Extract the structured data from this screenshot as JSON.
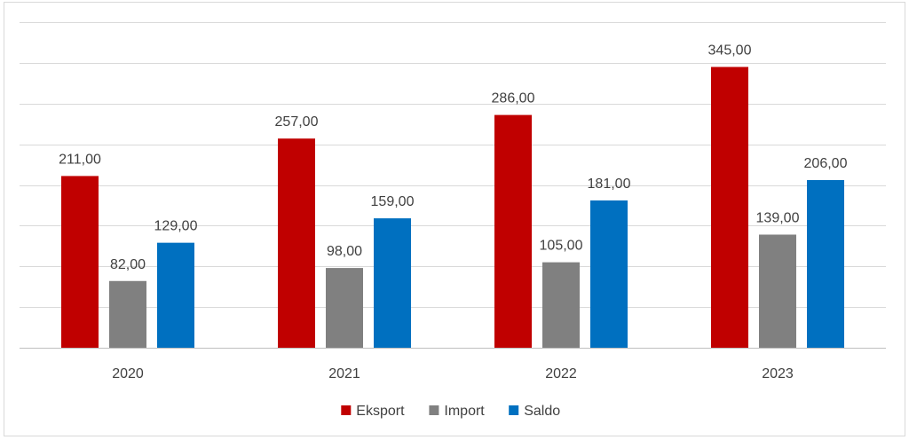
{
  "chart_data": {
    "type": "bar",
    "categories": [
      "2020",
      "2021",
      "2022",
      "2023"
    ],
    "series": [
      {
        "name": "Eksport",
        "color": "#c00000",
        "values": [
          211.0,
          257.0,
          286.0,
          345.0
        ],
        "labels": [
          "211,00",
          "257,00",
          "286,00",
          "345,00"
        ]
      },
      {
        "name": "Import",
        "color": "#808080",
        "values": [
          82.0,
          98.0,
          105.0,
          139.0
        ],
        "labels": [
          "82,00",
          "98,00",
          "105,00",
          "139,00"
        ]
      },
      {
        "name": "Saldo",
        "color": "#0070c0",
        "values": [
          129.0,
          159.0,
          181.0,
          206.0
        ],
        "labels": [
          "129,00",
          "159,00",
          "181,00",
          "206,00"
        ]
      }
    ],
    "title": "",
    "xlabel": "",
    "ylabel": "",
    "ylim": [
      0,
      400
    ],
    "y_gridline_step": 50,
    "grid": true,
    "y_axis_labels_shown": false,
    "legend_position": "bottom",
    "gridline_color": "#d9d9d9",
    "axis_color": "#bfbfbf"
  }
}
